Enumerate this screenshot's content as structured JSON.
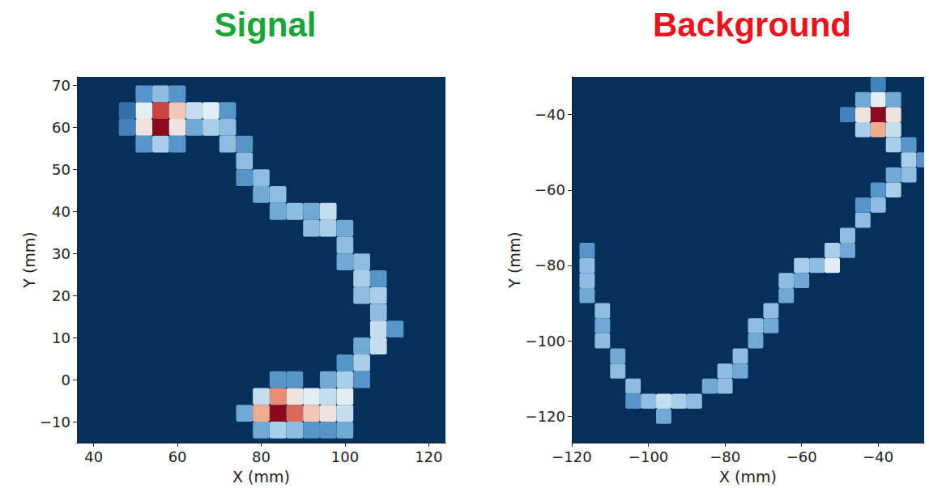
{
  "chart_data": [
    {
      "type": "heatmap",
      "title": "Signal",
      "x_label": "X (mm)",
      "y_label": "Y (mm)",
      "xlim": [
        36,
        124
      ],
      "ylim": [
        -15,
        72
      ],
      "xticks": [
        40,
        60,
        80,
        100,
        120
      ],
      "yticks": [
        {
          "value": -10,
          "label": "−10"
        },
        0,
        10,
        20,
        30,
        40,
        50,
        60,
        70
      ],
      "cell_size": 4,
      "cell_range": [
        0,
        1
      ],
      "cells": [
        [
          56,
          60,
          1.0
        ],
        [
          56,
          64,
          0.85
        ],
        [
          52,
          60,
          0.6
        ],
        [
          52,
          64,
          0.55
        ],
        [
          60,
          60,
          0.6
        ],
        [
          60,
          64,
          0.65
        ],
        [
          56,
          56,
          0.45
        ],
        [
          56,
          68,
          0.4
        ],
        [
          52,
          56,
          0.3
        ],
        [
          60,
          56,
          0.3
        ],
        [
          52,
          68,
          0.3
        ],
        [
          60,
          68,
          0.3
        ],
        [
          48,
          60,
          0.25
        ],
        [
          48,
          64,
          0.2
        ],
        [
          64,
          64,
          0.5
        ],
        [
          68,
          64,
          0.55
        ],
        [
          68,
          60,
          0.45
        ],
        [
          64,
          60,
          0.35
        ],
        [
          72,
          60,
          0.4
        ],
        [
          72,
          64,
          0.3
        ],
        [
          72,
          56,
          0.4
        ],
        [
          76,
          56,
          0.3
        ],
        [
          76,
          52,
          0.4
        ],
        [
          80,
          48,
          0.4
        ],
        [
          76,
          48,
          0.3
        ],
        [
          80,
          44,
          0.35
        ],
        [
          84,
          44,
          0.4
        ],
        [
          84,
          40,
          0.35
        ],
        [
          88,
          40,
          0.4
        ],
        [
          92,
          40,
          0.35
        ],
        [
          92,
          36,
          0.4
        ],
        [
          96,
          36,
          0.45
        ],
        [
          96,
          40,
          0.5
        ],
        [
          100,
          36,
          0.35
        ],
        [
          100,
          32,
          0.4
        ],
        [
          100,
          28,
          0.35
        ],
        [
          104,
          28,
          0.4
        ],
        [
          104,
          24,
          0.45
        ],
        [
          108,
          24,
          0.3
        ],
        [
          104,
          20,
          0.4
        ],
        [
          108,
          20,
          0.45
        ],
        [
          108,
          16,
          0.4
        ],
        [
          108,
          12,
          0.5
        ],
        [
          112,
          12,
          0.3
        ],
        [
          108,
          8,
          0.5
        ],
        [
          104,
          8,
          0.35
        ],
        [
          104,
          4,
          0.45
        ],
        [
          100,
          4,
          0.3
        ],
        [
          100,
          0,
          0.45
        ],
        [
          104,
          0,
          0.3
        ],
        [
          100,
          -4,
          0.55
        ],
        [
          100,
          -8,
          0.5
        ],
        [
          100,
          -12,
          0.35
        ],
        [
          84,
          -8,
          1.0
        ],
        [
          84,
          -4,
          0.75
        ],
        [
          80,
          -8,
          0.7
        ],
        [
          88,
          -8,
          0.8
        ],
        [
          88,
          -4,
          0.6
        ],
        [
          92,
          -8,
          0.65
        ],
        [
          92,
          -4,
          0.55
        ],
        [
          96,
          -8,
          0.6
        ],
        [
          96,
          -4,
          0.5
        ],
        [
          80,
          -4,
          0.5
        ],
        [
          84,
          -12,
          0.45
        ],
        [
          80,
          -12,
          0.35
        ],
        [
          88,
          -12,
          0.4
        ],
        [
          92,
          -12,
          0.3
        ],
        [
          96,
          -12,
          0.3
        ],
        [
          76,
          -8,
          0.35
        ],
        [
          84,
          0,
          0.3
        ],
        [
          88,
          0,
          0.3
        ],
        [
          96,
          0,
          0.35
        ]
      ]
    },
    {
      "type": "heatmap",
      "title": "Background",
      "x_label": "X (mm)",
      "y_label": "Y (mm)",
      "xlim": [
        -120,
        -28
      ],
      "ylim": [
        -127,
        -30
      ],
      "xticks": [
        {
          "value": -120,
          "label": "−120"
        },
        {
          "value": -100,
          "label": "−100"
        },
        {
          "value": -80,
          "label": "−80"
        },
        {
          "value": -60,
          "label": "−60"
        },
        {
          "value": -40,
          "label": "−40"
        }
      ],
      "yticks": [
        {
          "value": -120,
          "label": "−120"
        },
        {
          "value": -100,
          "label": "−100"
        },
        {
          "value": -80,
          "label": "−80"
        },
        {
          "value": -60,
          "label": "−60"
        },
        {
          "value": -40,
          "label": "−40"
        }
      ],
      "cell_size": 4,
      "cell_range": [
        0,
        1
      ],
      "cells": [
        [
          -40,
          -40,
          1.0
        ],
        [
          -44,
          -40,
          0.6
        ],
        [
          -40,
          -36,
          0.55
        ],
        [
          -36,
          -40,
          0.6
        ],
        [
          -40,
          -44,
          0.7
        ],
        [
          -44,
          -44,
          0.45
        ],
        [
          -36,
          -44,
          0.5
        ],
        [
          -44,
          -36,
          0.35
        ],
        [
          -36,
          -36,
          0.35
        ],
        [
          -48,
          -40,
          0.25
        ],
        [
          -40,
          -32,
          0.25
        ],
        [
          -36,
          -48,
          0.45
        ],
        [
          -32,
          -48,
          0.3
        ],
        [
          -32,
          -52,
          0.45
        ],
        [
          -28,
          -52,
          0.3
        ],
        [
          -32,
          -56,
          0.4
        ],
        [
          -36,
          -56,
          0.35
        ],
        [
          -36,
          -60,
          0.45
        ],
        [
          -40,
          -64,
          0.4
        ],
        [
          -40,
          -60,
          0.3
        ],
        [
          -44,
          -68,
          0.4
        ],
        [
          -44,
          -64,
          0.3
        ],
        [
          -48,
          -72,
          0.4
        ],
        [
          -48,
          -76,
          0.35
        ],
        [
          -52,
          -76,
          0.45
        ],
        [
          -52,
          -80,
          0.55
        ],
        [
          -56,
          -80,
          0.4
        ],
        [
          -60,
          -80,
          0.45
        ],
        [
          -60,
          -84,
          0.35
        ],
        [
          -64,
          -84,
          0.4
        ],
        [
          -64,
          -88,
          0.35
        ],
        [
          -68,
          -92,
          0.4
        ],
        [
          -68,
          -96,
          0.35
        ],
        [
          -72,
          -96,
          0.4
        ],
        [
          -72,
          -100,
          0.35
        ],
        [
          -76,
          -104,
          0.4
        ],
        [
          -76,
          -108,
          0.35
        ],
        [
          -80,
          -108,
          0.4
        ],
        [
          -80,
          -112,
          0.4
        ],
        [
          -84,
          -112,
          0.35
        ],
        [
          -88,
          -116,
          0.4
        ],
        [
          -92,
          -116,
          0.45
        ],
        [
          -96,
          -116,
          0.5
        ],
        [
          -96,
          -120,
          0.35
        ],
        [
          -100,
          -116,
          0.4
        ],
        [
          -104,
          -112,
          0.4
        ],
        [
          -104,
          -116,
          0.3
        ],
        [
          -108,
          -108,
          0.4
        ],
        [
          -108,
          -104,
          0.35
        ],
        [
          -112,
          -100,
          0.4
        ],
        [
          -112,
          -96,
          0.35
        ],
        [
          -112,
          -92,
          0.4
        ],
        [
          -116,
          -88,
          0.35
        ],
        [
          -116,
          -84,
          0.4
        ],
        [
          -116,
          -80,
          0.4
        ],
        [
          -116,
          -76,
          0.3
        ]
      ]
    }
  ]
}
